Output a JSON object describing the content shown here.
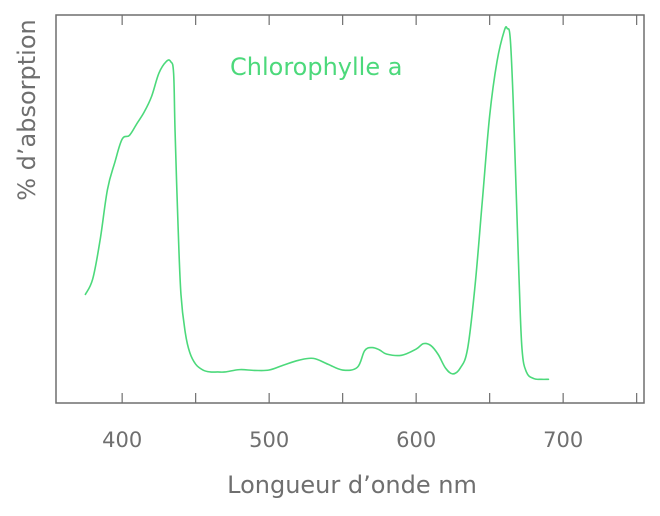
{
  "chart_data": {
    "type": "line",
    "title": "",
    "xlabel": "Longueur d’onde nm",
    "ylabel": "% d’absorption",
    "xlim": [
      355,
      755
    ],
    "ylim": [
      0,
      100
    ],
    "xticks": [
      400,
      500,
      600,
      700
    ],
    "grid": false,
    "colors": {
      "series": "#4cd97b",
      "axis": "#6f6f6f"
    },
    "series": [
      {
        "name": "Chlorophylle a",
        "x": [
          375,
          380,
          385,
          390,
          395,
          400,
          405,
          410,
          415,
          420,
          425,
          430,
          433,
          435,
          436,
          438,
          440,
          443,
          446,
          450,
          455,
          460,
          465,
          470,
          480,
          490,
          500,
          510,
          520,
          530,
          540,
          550,
          560,
          565,
          570,
          575,
          580,
          590,
          600,
          605,
          610,
          615,
          620,
          625,
          630,
          635,
          640,
          645,
          650,
          655,
          660,
          662,
          664,
          666,
          668,
          670,
          672,
          675,
          680,
          685,
          690
        ],
        "values": [
          28,
          32,
          42,
          55,
          62,
          68,
          69,
          72,
          75,
          79,
          85,
          88,
          88,
          85,
          70,
          46,
          28,
          18,
          13,
          10,
          8.5,
          8,
          8,
          8,
          8.6,
          8.4,
          8.5,
          9.8,
          11,
          11.5,
          10,
          8.5,
          9.2,
          13.5,
          14.3,
          13.7,
          12.6,
          12.3,
          13.9,
          15.3,
          14.8,
          12.5,
          9,
          7.5,
          9,
          14,
          30,
          52,
          74,
          88,
          96,
          96.5,
          94,
          78,
          55,
          32,
          14,
          8,
          6.3,
          6.1,
          6.1
        ]
      }
    ]
  }
}
